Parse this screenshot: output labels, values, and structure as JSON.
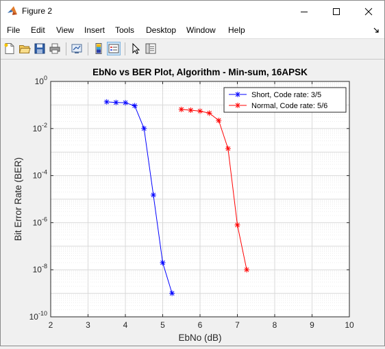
{
  "window": {
    "title": "Figure 2",
    "icon": "matlab-figure-icon",
    "controls": [
      "minimize-icon",
      "maximize-icon",
      "close-icon"
    ]
  },
  "menu": {
    "items": [
      "File",
      "Edit",
      "View",
      "Insert",
      "Tools",
      "Desktop",
      "Window",
      "Help"
    ]
  },
  "toolbar": {
    "buttons": [
      "new-figure-icon",
      "open-file-icon",
      "save-icon",
      "print-icon",
      "link-plot-icon",
      "insert-colorbar-icon",
      "insert-legend-icon",
      "edit-plot-icon",
      "property-inspector-icon"
    ]
  },
  "colors": {
    "series1": "#0000ff",
    "series2": "#ff0000",
    "grid": "#d9d9d9",
    "axes_bg": "#ffffff",
    "figure_bg": "#f0f0f0"
  },
  "chart_data": {
    "type": "line",
    "title": "EbNo vs BER Plot, Algorithm - Min-sum, 16APSK",
    "xlabel": "EbNo (dB)",
    "ylabel": "Bit Error Rate (BER)",
    "xlim": [
      2,
      10
    ],
    "ylim": [
      1e-10,
      1
    ],
    "yscale": "log",
    "grid": "on (major and minor)",
    "legend_position": "top-right",
    "x_ticks": [
      "2",
      "3",
      "4",
      "5",
      "6",
      "7",
      "8",
      "9",
      "10"
    ],
    "y_ticks": [
      {
        "base": "10",
        "exp": "-10"
      },
      {
        "base": "10",
        "exp": "-8"
      },
      {
        "base": "10",
        "exp": "-6"
      },
      {
        "base": "10",
        "exp": "-4"
      },
      {
        "base": "10",
        "exp": "-2"
      },
      {
        "base": "10",
        "exp": "0"
      }
    ],
    "marker": "asterisk",
    "series": [
      {
        "name": "Short, Code rate: 3/5",
        "color": "#0000ff",
        "x": [
          3.5,
          3.75,
          4.0,
          4.25,
          4.5,
          4.75,
          5.0,
          5.25
        ],
        "y": [
          0.135,
          0.128,
          0.125,
          0.093,
          0.01,
          1.5e-05,
          2e-08,
          1e-09
        ]
      },
      {
        "name": "Normal, Code rate: 5/6",
        "color": "#ff0000",
        "x": [
          5.5,
          5.75,
          6.0,
          6.25,
          6.5,
          6.75,
          7.0,
          7.25
        ],
        "y": [
          0.065,
          0.06,
          0.055,
          0.045,
          0.022,
          0.0014,
          8e-07,
          1e-08
        ]
      }
    ]
  }
}
